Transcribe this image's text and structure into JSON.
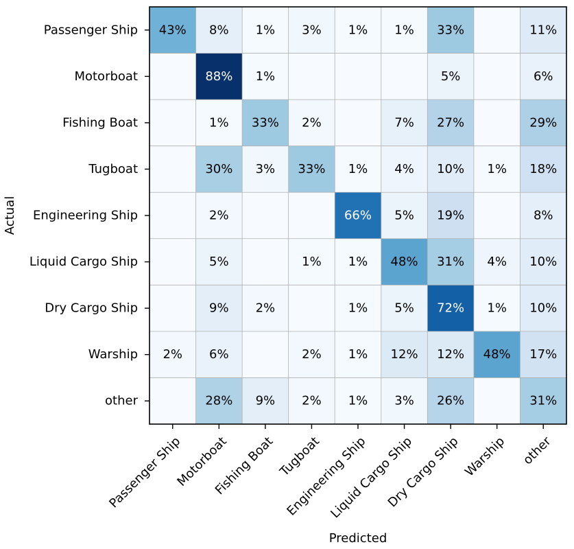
{
  "chart_data": {
    "type": "heatmap",
    "title": "",
    "xlabel": "Predicted",
    "ylabel": "Actual",
    "row_labels": [
      "Passenger Ship",
      "Motorboat",
      "Fishing Boat",
      "Tugboat",
      "Engineering Ship",
      "Liquid Cargo Ship",
      "Dry Cargo Ship",
      "Warship",
      "other"
    ],
    "col_labels": [
      "Passenger Ship",
      "Motorboat",
      "Fishing Boat",
      "Tugboat",
      "Engineering Ship",
      "Liquid Cargo Ship",
      "Dry Cargo Ship",
      "Warship",
      "other"
    ],
    "values": [
      [
        43,
        8,
        1,
        3,
        1,
        1,
        33,
        null,
        11
      ],
      [
        null,
        88,
        1,
        null,
        null,
        null,
        5,
        null,
        6
      ],
      [
        null,
        1,
        33,
        2,
        null,
        7,
        27,
        null,
        29
      ],
      [
        null,
        30,
        3,
        33,
        1,
        4,
        10,
        1,
        18
      ],
      [
        null,
        2,
        null,
        null,
        66,
        5,
        19,
        null,
        8
      ],
      [
        null,
        5,
        null,
        1,
        1,
        48,
        31,
        4,
        10
      ],
      [
        null,
        9,
        2,
        null,
        1,
        5,
        72,
        1,
        10
      ],
      [
        2,
        6,
        null,
        2,
        1,
        12,
        12,
        48,
        17
      ],
      [
        null,
        28,
        9,
        2,
        1,
        3,
        26,
        null,
        31
      ]
    ],
    "value_suffix": "%",
    "vmin": 0,
    "vmax": 88,
    "colormap": "Blues",
    "grid": true
  }
}
